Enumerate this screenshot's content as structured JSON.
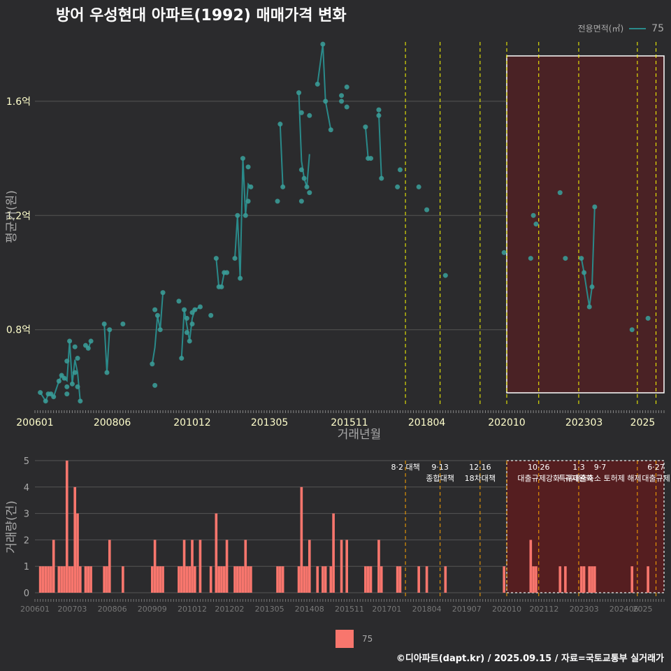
{
  "title": "방어 우성현대 아파트(1992) 매매가격 변화",
  "legend": {
    "label": "전용면적(㎡)",
    "value": "75"
  },
  "caption": "©디아파트(dapt.kr) / 2025.09.15 / 자료=국토교통부 실거래가",
  "colors": {
    "line": "#2a8a8a",
    "point": "#3a9a96",
    "bar": "#f8766d",
    "policy": "#ffff00",
    "policy_bottom": "#ffa500",
    "highlight_fill": "#4a2225",
    "bg": "#2b2b2d"
  },
  "chart_data": [
    {
      "type": "line",
      "title": "방어 우성현대 아파트(1992) 매매가격 변화",
      "xlabel": "거래년월",
      "ylabel": "평균가(원)",
      "x_range": [
        "2006-01",
        "2025-09"
      ],
      "x_ticks": [
        "200601",
        "200806",
        "201012",
        "201305",
        "201511",
        "201804",
        "202010",
        "202303",
        "2025"
      ],
      "ylim": [
        0.53,
        1.82
      ],
      "y_ticks": [
        {
          "value": 0.8,
          "label": "0.8억"
        },
        {
          "value": 1.2,
          "label": "1.2억"
        },
        {
          "value": 1.6,
          "label": "1.6억"
        }
      ],
      "highlight_range": [
        "2020-10",
        "2025-09"
      ],
      "policy_lines": [
        "2017-08",
        "2018-09",
        "2019-12",
        "2020-10",
        "2021-10",
        "2023-01",
        "2024-11",
        "2025-06"
      ],
      "series": [
        {
          "name": "75",
          "points": [
            [
              "2006-03",
              0.58
            ],
            [
              "2006-05",
              0.55
            ],
            [
              "2006-06",
              0.575
            ],
            [
              "2006-07",
              0.575
            ],
            [
              "2006-08",
              0.565
            ],
            [
              "2006-10",
              0.62
            ],
            [
              "2006-11",
              0.64
            ],
            [
              "2006-12",
              0.63
            ],
            [
              "2007-01",
              0.6
            ],
            [
              "2007-01",
              0.575
            ],
            [
              "2007-01",
              0.69
            ],
            [
              "2007-02",
              0.76
            ],
            [
              "2007-03",
              0.61
            ],
            [
              "2007-04",
              0.74
            ],
            [
              "2007-04",
              0.65
            ],
            [
              "2007-05",
              0.7
            ],
            [
              "2007-05",
              0.6
            ],
            [
              "2007-06",
              0.55
            ],
            [
              "2007-08",
              0.745
            ],
            [
              "2007-09",
              0.735
            ],
            [
              "2007-10",
              0.76
            ],
            [
              "2008-03",
              0.82
            ],
            [
              "2008-04",
              0.65
            ],
            [
              "2008-05",
              0.8
            ],
            [
              "2008-10",
              0.82
            ],
            [
              "2009-09",
              0.68
            ],
            [
              "2009-10",
              0.87
            ],
            [
              "2009-10",
              0.605
            ],
            [
              "2009-11",
              0.85
            ],
            [
              "2009-12",
              0.8
            ],
            [
              "2010-01",
              0.93
            ],
            [
              "2010-07",
              0.9
            ],
            [
              "2010-08",
              0.7
            ],
            [
              "2010-09",
              0.87
            ],
            [
              "2010-10",
              0.79
            ],
            [
              "2010-10",
              0.84
            ],
            [
              "2010-11",
              0.76
            ],
            [
              "2010-12",
              0.82
            ],
            [
              "2010-12",
              0.86
            ],
            [
              "2011-01",
              0.87
            ],
            [
              "2011-03",
              0.88
            ],
            [
              "2011-07",
              0.85
            ],
            [
              "2011-09",
              1.05
            ],
            [
              "2011-10",
              0.95
            ],
            [
              "2011-11",
              0.95
            ],
            [
              "2011-12",
              1.0
            ],
            [
              "2012-01",
              1.0
            ],
            [
              "2012-04",
              1.05
            ],
            [
              "2012-05",
              1.2
            ],
            [
              "2012-06",
              0.98
            ],
            [
              "2012-07",
              1.4
            ],
            [
              "2012-08",
              1.2
            ],
            [
              "2012-09",
              1.37
            ],
            [
              "2012-09",
              1.25
            ],
            [
              "2012-10",
              1.3
            ],
            [
              "2013-08",
              1.25
            ],
            [
              "2013-09",
              1.52
            ],
            [
              "2013-10",
              1.3
            ],
            [
              "2014-04",
              1.63
            ],
            [
              "2014-05",
              1.25
            ],
            [
              "2014-05",
              1.56
            ],
            [
              "2014-05",
              1.36
            ],
            [
              "2014-06",
              1.33
            ],
            [
              "2014-07",
              1.3
            ],
            [
              "2014-08",
              1.28
            ],
            [
              "2014-08",
              1.55
            ],
            [
              "2014-11",
              1.66
            ],
            [
              "2015-01",
              1.8
            ],
            [
              "2015-02",
              1.6
            ],
            [
              "2015-04",
              1.5
            ],
            [
              "2015-08",
              1.6
            ],
            [
              "2015-08",
              1.62
            ],
            [
              "2015-10",
              1.58
            ],
            [
              "2015-10",
              1.65
            ],
            [
              "2016-05",
              1.51
            ],
            [
              "2016-06",
              1.4
            ],
            [
              "2016-07",
              1.4
            ],
            [
              "2016-10",
              1.57
            ],
            [
              "2016-10",
              1.55
            ],
            [
              "2016-11",
              1.33
            ],
            [
              "2017-05",
              1.3
            ],
            [
              "2017-06",
              1.36
            ],
            [
              "2018-01",
              1.3
            ],
            [
              "2018-04",
              1.22
            ],
            [
              "2018-11",
              0.99
            ],
            [
              "2020-09",
              1.07
            ],
            [
              "2021-07",
              1.05
            ],
            [
              "2021-08",
              1.2
            ],
            [
              "2021-09",
              1.17
            ],
            [
              "2022-06",
              1.28
            ],
            [
              "2022-08",
              1.05
            ],
            [
              "2023-02",
              1.05
            ],
            [
              "2023-03",
              1.0
            ],
            [
              "2023-05",
              0.88
            ],
            [
              "2023-06",
              0.95
            ],
            [
              "2023-07",
              1.23
            ],
            [
              "2024-09",
              0.8
            ],
            [
              "2025-03",
              0.84
            ]
          ],
          "segments": [
            [
              "2006-03",
              "2006-05",
              "2006-06",
              "2006-07",
              "2006-08",
              "2006-10",
              "2006-11",
              "2006-12",
              "2007-01",
              "2007-02",
              "2007-03",
              "2007-04",
              "2007-05",
              "2007-06"
            ],
            [
              "2007-08",
              "2007-09",
              "2007-10"
            ],
            [
              "2008-03",
              "2008-04",
              "2008-05"
            ],
            [
              "2009-09",
              "2009-10",
              "2009-11",
              "2009-12",
              "2010-01"
            ],
            [
              "2010-08",
              "2010-09",
              "2010-10",
              "2010-11",
              "2010-12",
              "2011-01",
              "2011-03"
            ],
            [
              "2011-09",
              "2011-10",
              "2011-11",
              "2011-12",
              "2012-01"
            ],
            [
              "2012-04",
              "2012-05",
              "2012-06",
              "2012-07",
              "2012-08",
              "2012-09",
              "2012-10"
            ],
            [
              "2013-09",
              "2013-10"
            ],
            [
              "2014-04",
              "2014-05",
              "2014-06",
              "2014-07",
              "2014-08"
            ],
            [
              "2014-11",
              "2015-01",
              "2015-02",
              "2015-04"
            ],
            [
              "2016-05",
              "2016-06",
              "2016-07"
            ],
            [
              "2016-10",
              "2016-11"
            ],
            [
              "2023-02",
              "2023-03",
              "2023-05",
              "2023-06",
              "2023-07"
            ]
          ]
        }
      ]
    },
    {
      "type": "bar",
      "ylabel": "거래량(건)",
      "ylim": [
        0,
        5
      ],
      "y_ticks": [
        0,
        1,
        2,
        3,
        4,
        5
      ],
      "x_ticks": [
        "200601",
        "200703",
        "200806",
        "200909",
        "201012",
        "201202",
        "201305",
        "201408",
        "201511",
        "201701",
        "201804",
        "201907",
        "202010",
        "202112",
        "202303",
        "202406",
        "2025"
      ],
      "highlight_range": [
        "2020-10",
        "2025-09"
      ],
      "bars": [
        [
          "2006-03",
          1
        ],
        [
          "2006-04",
          1
        ],
        [
          "2006-05",
          1
        ],
        [
          "2006-06",
          1
        ],
        [
          "2006-07",
          1
        ],
        [
          "2006-08",
          2
        ],
        [
          "2006-10",
          1
        ],
        [
          "2006-11",
          1
        ],
        [
          "2006-12",
          1
        ],
        [
          "2007-01",
          5
        ],
        [
          "2007-02",
          1
        ],
        [
          "2007-03",
          1
        ],
        [
          "2007-04",
          4
        ],
        [
          "2007-05",
          3
        ],
        [
          "2007-06",
          1
        ],
        [
          "2007-08",
          1
        ],
        [
          "2007-09",
          1
        ],
        [
          "2007-10",
          1
        ],
        [
          "2008-03",
          1
        ],
        [
          "2008-04",
          1
        ],
        [
          "2008-05",
          2
        ],
        [
          "2008-10",
          1
        ],
        [
          "2009-09",
          1
        ],
        [
          "2009-10",
          2
        ],
        [
          "2009-11",
          1
        ],
        [
          "2009-12",
          1
        ],
        [
          "2010-01",
          1
        ],
        [
          "2010-07",
          1
        ],
        [
          "2010-08",
          1
        ],
        [
          "2010-09",
          2
        ],
        [
          "2010-10",
          1
        ],
        [
          "2010-11",
          1
        ],
        [
          "2010-12",
          2
        ],
        [
          "2011-01",
          1
        ],
        [
          "2011-03",
          2
        ],
        [
          "2011-07",
          1
        ],
        [
          "2011-09",
          3
        ],
        [
          "2011-10",
          1
        ],
        [
          "2011-11",
          1
        ],
        [
          "2011-12",
          1
        ],
        [
          "2012-01",
          2
        ],
        [
          "2012-04",
          1
        ],
        [
          "2012-05",
          1
        ],
        [
          "2012-06",
          1
        ],
        [
          "2012-07",
          1
        ],
        [
          "2012-08",
          2
        ],
        [
          "2012-09",
          1
        ],
        [
          "2012-10",
          1
        ],
        [
          "2013-08",
          1
        ],
        [
          "2013-09",
          1
        ],
        [
          "2013-10",
          1
        ],
        [
          "2014-04",
          1
        ],
        [
          "2014-05",
          4
        ],
        [
          "2014-06",
          1
        ],
        [
          "2014-07",
          1
        ],
        [
          "2014-08",
          2
        ],
        [
          "2014-11",
          1
        ],
        [
          "2015-01",
          1
        ],
        [
          "2015-02",
          1
        ],
        [
          "2015-04",
          1
        ],
        [
          "2015-05",
          3
        ],
        [
          "2015-08",
          2
        ],
        [
          "2015-10",
          2
        ],
        [
          "2016-05",
          1
        ],
        [
          "2016-06",
          1
        ],
        [
          "2016-07",
          1
        ],
        [
          "2016-10",
          2
        ],
        [
          "2016-11",
          1
        ],
        [
          "2017-05",
          1
        ],
        [
          "2017-06",
          1
        ],
        [
          "2018-01",
          1
        ],
        [
          "2018-04",
          1
        ],
        [
          "2018-11",
          1
        ],
        [
          "2020-09",
          1
        ],
        [
          "2021-07",
          2
        ],
        [
          "2021-08",
          1
        ],
        [
          "2021-09",
          1
        ],
        [
          "2022-06",
          1
        ],
        [
          "2022-08",
          1
        ],
        [
          "2023-02",
          1
        ],
        [
          "2023-03",
          1
        ],
        [
          "2023-05",
          1
        ],
        [
          "2023-06",
          1
        ],
        [
          "2023-07",
          1
        ],
        [
          "2024-09",
          1
        ],
        [
          "2025-03",
          1
        ]
      ],
      "policy_labels": [
        {
          "date": "2017-08",
          "lines": [
            "8·2 대책"
          ]
        },
        {
          "date": "2018-09",
          "lines": [
            "9·13",
            "종합대책"
          ]
        },
        {
          "date": "2019-12",
          "lines": [
            "12·16",
            "18차대책"
          ]
        },
        {
          "date": "2021-10",
          "lines": [
            "10·26",
            "대출규제강화"
          ]
        },
        {
          "date": "2023-01",
          "lines": [
            "1·3",
            "규제완화"
          ]
        },
        {
          "date": "2023-09",
          "lines": [
            "9·7",
            "특례대출축소 토허제 해제"
          ]
        },
        {
          "date": "2025-06",
          "lines": [
            "6·27",
            "대출규제"
          ]
        }
      ]
    }
  ]
}
